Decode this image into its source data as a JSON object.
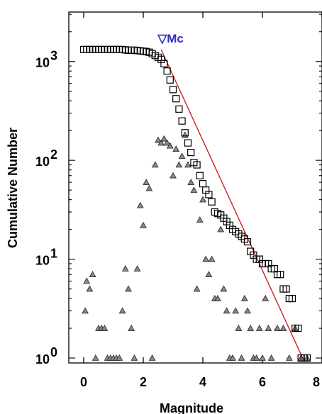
{
  "chart_data": {
    "type": "scatter",
    "xlabel": "Magnitude",
    "ylabel": "Cumulative Number",
    "xlim": [
      -0.5,
      8.0
    ],
    "ylim_log10": [
      -0.05,
      3.5
    ],
    "y_scale": "log",
    "x_ticks": [
      0,
      2,
      4,
      6,
      8
    ],
    "x_tick_labels": [
      "0",
      "2",
      "4",
      "6",
      "8"
    ],
    "y_ticks": [
      0,
      1,
      2,
      3
    ],
    "y_tick_labels": [
      {
        "base": "10",
        "exp": "0"
      },
      {
        "base": "10",
        "exp": "1"
      },
      {
        "base": "10",
        "exp": "2"
      },
      {
        "base": "10",
        "exp": "3"
      }
    ],
    "grid": false,
    "series": [
      {
        "marker": "open-square",
        "color": "#000000",
        "x": [
          0.0,
          0.1,
          0.2,
          0.3,
          0.4,
          0.5,
          0.6,
          0.7,
          0.8,
          0.9,
          1.0,
          1.1,
          1.2,
          1.3,
          1.4,
          1.5,
          1.6,
          1.7,
          1.8,
          1.9,
          2.0,
          2.1,
          2.2,
          2.3,
          2.4,
          2.5,
          2.6,
          2.7,
          2.8,
          2.9,
          3.0,
          3.1,
          3.2,
          3.3,
          3.4,
          3.5,
          3.6,
          3.7,
          3.8,
          3.9,
          4.0,
          4.1,
          4.2,
          4.3,
          4.4,
          4.5,
          4.6,
          4.7,
          4.8,
          4.9,
          5.0,
          5.1,
          5.2,
          5.3,
          5.4,
          5.5,
          5.6,
          5.7,
          5.8,
          5.9,
          6.0,
          6.1,
          6.2,
          6.3,
          6.4,
          6.5,
          6.6,
          6.7,
          6.8,
          6.9,
          7.0,
          7.1,
          7.2,
          7.3,
          7.4,
          7.5
        ],
        "y": [
          1320,
          1320,
          1320,
          1320,
          1320,
          1320,
          1320,
          1320,
          1320,
          1320,
          1320,
          1320,
          1320,
          1320,
          1310,
          1300,
          1300,
          1300,
          1290,
          1280,
          1270,
          1260,
          1240,
          1200,
          1150,
          1100,
          1050,
          950,
          800,
          650,
          520,
          420,
          330,
          250,
          190,
          150,
          120,
          95,
          90,
          70,
          58,
          50,
          45,
          38,
          30,
          29,
          28,
          26,
          24,
          22,
          20,
          19,
          18,
          17,
          16,
          15,
          12,
          11,
          10,
          10,
          9,
          9,
          9,
          8,
          8,
          7,
          7,
          5,
          5,
          4,
          4,
          2,
          2,
          1,
          1,
          1
        ]
      },
      {
        "marker": "filled-triangle",
        "color": "#888888",
        "x": [
          0.05,
          0.1,
          0.2,
          0.3,
          0.4,
          0.5,
          0.6,
          0.7,
          0.8,
          0.9,
          1.0,
          1.1,
          1.2,
          1.3,
          1.4,
          1.5,
          1.6,
          1.7,
          1.8,
          1.9,
          2.0,
          2.1,
          2.2,
          2.3,
          2.4,
          2.5,
          2.6,
          2.7,
          2.8,
          2.9,
          3.0,
          3.1,
          3.2,
          3.3,
          3.4,
          3.5,
          3.6,
          3.7,
          3.8,
          3.9,
          4.0,
          4.1,
          4.2,
          4.3,
          4.4,
          4.5,
          4.6,
          4.7,
          4.8,
          4.9,
          5.0,
          5.1,
          5.2,
          5.3,
          5.4,
          5.5,
          5.6,
          5.7,
          5.8,
          5.9,
          6.0,
          6.1,
          6.2,
          6.3,
          6.5,
          6.7,
          6.9,
          7.1,
          7.3,
          7.5
        ],
        "y": [
          3,
          6,
          5,
          7,
          1,
          2,
          2,
          2,
          1,
          1,
          1,
          1,
          1,
          3,
          8,
          5,
          2,
          1,
          8,
          35,
          22,
          60,
          52,
          1,
          90,
          160,
          150,
          165,
          150,
          140,
          70,
          130,
          90,
          110,
          180,
          90,
          60,
          50,
          5,
          25,
          40,
          10,
          7,
          10,
          4,
          4,
          20,
          5,
          3,
          1,
          1,
          3,
          2,
          1,
          4,
          3,
          2,
          1,
          1,
          2,
          1,
          4,
          2,
          1,
          2,
          2,
          1,
          2,
          1,
          1
        ]
      },
      {
        "type": "line",
        "color": "#cc2222",
        "x": [
          2.6,
          7.35
        ],
        "y": [
          1320,
          1.0
        ]
      }
    ],
    "annotations": [
      {
        "text": "▽Mc",
        "x": 2.6,
        "y": 1320
      }
    ]
  }
}
